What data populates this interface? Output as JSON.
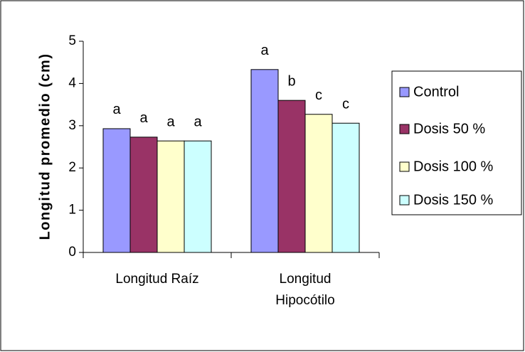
{
  "chart_data": {
    "type": "bar",
    "ylabel": "Longitud promedio (cm)",
    "categories": [
      "Longitud Raíz",
      "Longitud Hipocótilo"
    ],
    "ylim": [
      0,
      5
    ],
    "yticks": [
      0,
      1,
      2,
      3,
      4,
      5
    ],
    "legend": "right",
    "series": [
      {
        "name": "Control",
        "color": "#9999ff",
        "values": [
          2.93,
          4.33
        ],
        "letters": [
          "a",
          "a"
        ]
      },
      {
        "name": "Dosis 50 %",
        "color": "#993366",
        "values": [
          2.73,
          3.6
        ],
        "letters": [
          "a",
          "b"
        ]
      },
      {
        "name": "Dosis 100 %",
        "color": "#ffffcc",
        "values": [
          2.64,
          3.27
        ],
        "letters": [
          "a",
          "c"
        ]
      },
      {
        "name": "Dosis 150 %",
        "color": "#ccffff",
        "values": [
          2.64,
          3.06
        ],
        "letters": [
          "a",
          "c"
        ]
      }
    ]
  }
}
